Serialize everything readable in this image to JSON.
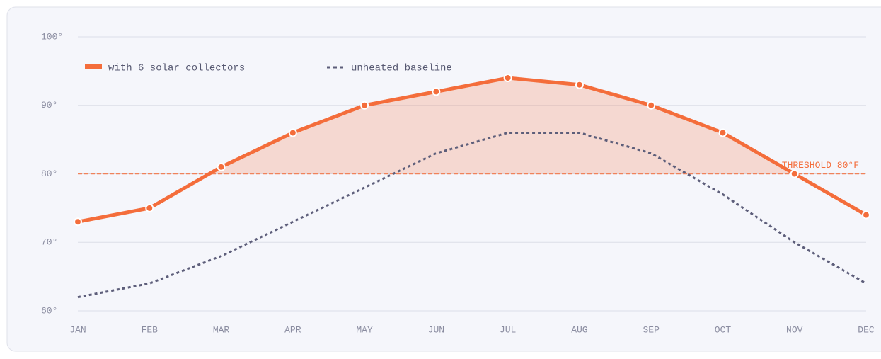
{
  "chart_data": {
    "type": "line",
    "categories": [
      "JAN",
      "FEB",
      "MAR",
      "APR",
      "MAY",
      "JUN",
      "JUL",
      "AUG",
      "SEP",
      "OCT",
      "NOV",
      "DEC"
    ],
    "series": [
      {
        "name": "with 6 solar collectors",
        "color": "#f46d3b",
        "values": [
          73,
          75,
          81,
          86,
          90,
          92,
          94,
          93,
          90,
          86,
          80,
          74
        ]
      },
      {
        "name": "unheated baseline",
        "color": "#5d5e7a",
        "values": [
          62,
          64,
          68,
          73,
          78,
          83,
          86,
          86,
          83,
          77,
          70,
          64
        ]
      }
    ],
    "threshold": {
      "value": 80,
      "label": "THRESHOLD 80°F"
    },
    "ylim": [
      60,
      100
    ],
    "yticks": [
      {
        "value": 60,
        "label": "60°"
      },
      {
        "value": 70,
        "label": "70°"
      },
      {
        "value": 80,
        "label": "80°"
      },
      {
        "value": 90,
        "label": "90°"
      },
      {
        "value": 100,
        "label": "100°"
      }
    ],
    "grid": true
  }
}
